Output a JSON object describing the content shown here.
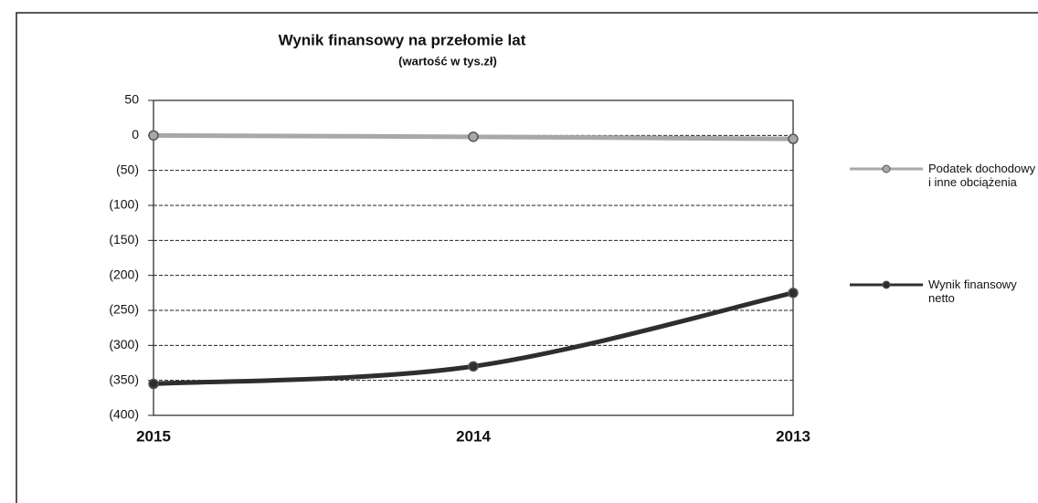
{
  "chart_data": {
    "type": "line",
    "title": "Wynik finansowy na przełomie lat",
    "subtitle": "(wartość w tys.zł)",
    "categories": [
      "2015",
      "2014",
      "2013"
    ],
    "series": [
      {
        "name": "Podatek dochodowy i inne obciążenia",
        "color": "#a8a8a8",
        "values": [
          0,
          -2,
          -5
        ]
      },
      {
        "name": "Wynik finansowy netto",
        "color": "#2e2e2e",
        "values": [
          -355,
          -330,
          -225
        ]
      }
    ],
    "ylim": [
      -400,
      50
    ],
    "yticks": [
      50,
      0,
      {
        "value": -50,
        "label": "(50)"
      },
      {
        "value": -100,
        "label": "(100)"
      },
      {
        "value": -150,
        "label": "(150)"
      },
      {
        "value": -200,
        "label": "(200)"
      },
      {
        "value": -250,
        "label": "(250)"
      },
      {
        "value": -300,
        "label": "(300)"
      },
      {
        "value": -350,
        "label": "(350)"
      },
      {
        "value": -400,
        "label": "(400)"
      }
    ],
    "grid": true
  }
}
